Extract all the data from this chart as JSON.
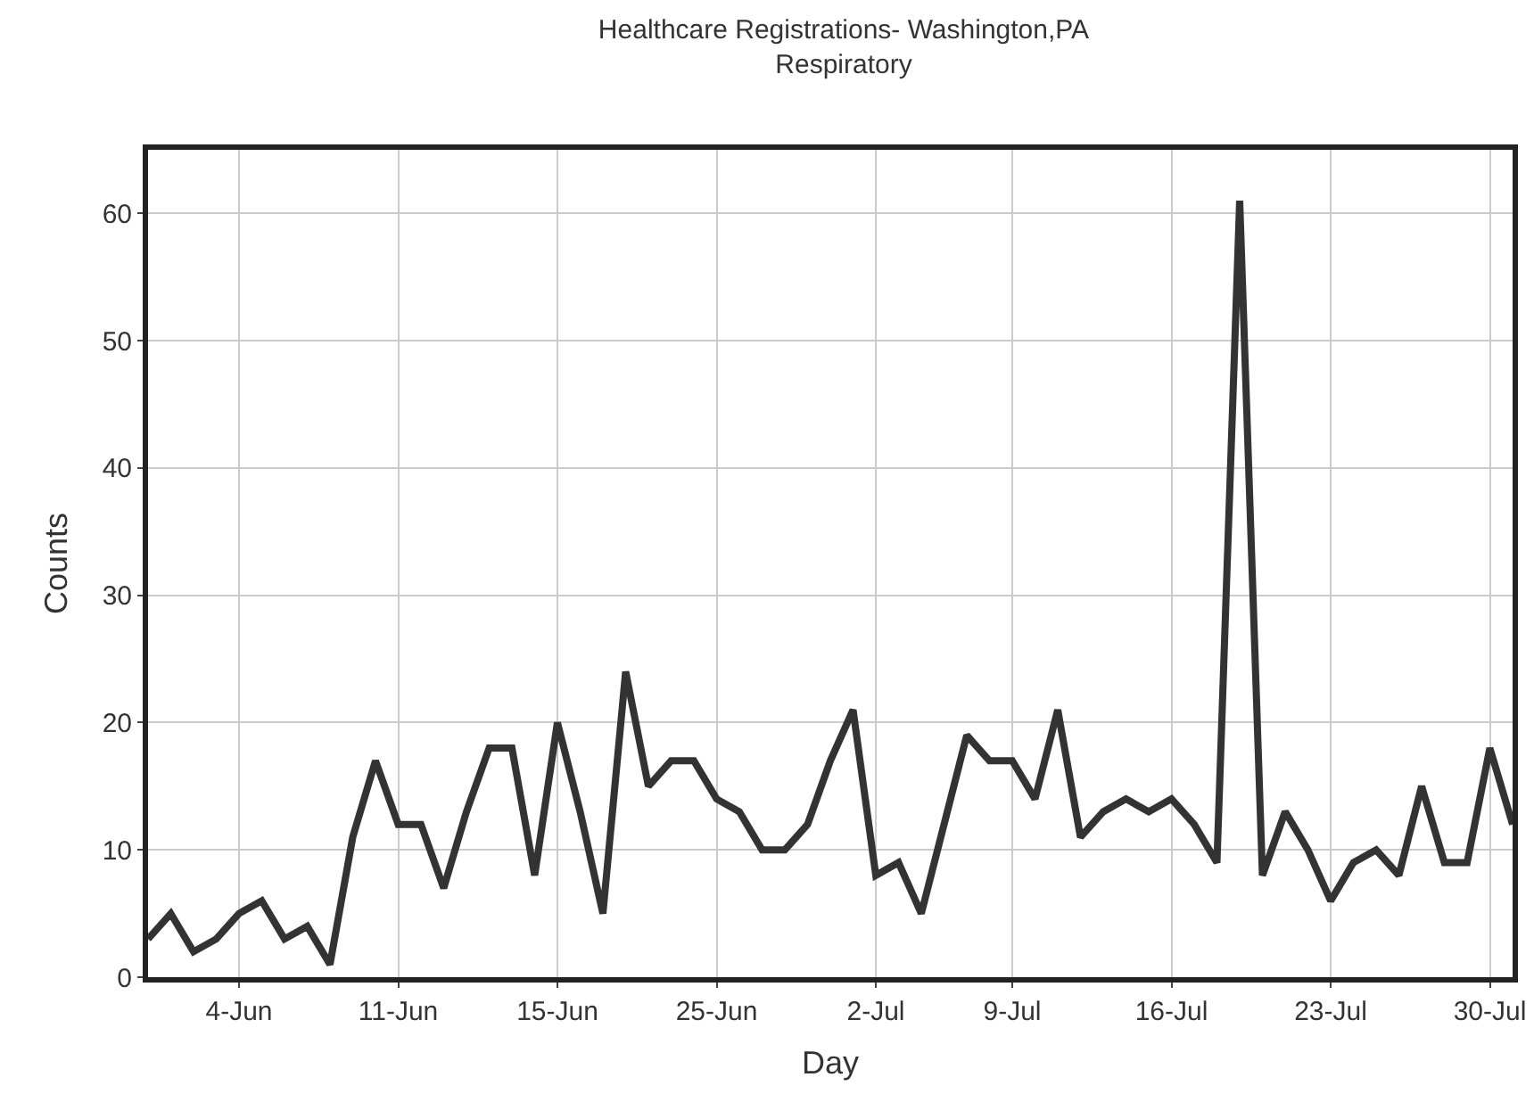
{
  "chart_data": {
    "type": "line",
    "title": "Healthcare Registrations- Washington,PA",
    "subtitle": "Respiratory",
    "xlabel": "Day",
    "ylabel": "Counts",
    "categories": [
      null,
      null,
      null,
      null,
      "4-Jun",
      null,
      null,
      null,
      null,
      null,
      null,
      "11-Jun",
      null,
      null,
      null,
      null,
      null,
      null,
      "15-Jun",
      null,
      null,
      null,
      null,
      null,
      null,
      "25-Jun",
      null,
      null,
      null,
      null,
      null,
      null,
      "2-Jul",
      null,
      null,
      null,
      null,
      null,
      "9-Jul",
      null,
      null,
      null,
      null,
      null,
      null,
      "16-Jul",
      null,
      null,
      null,
      null,
      null,
      null,
      "23-Jul",
      null,
      null,
      null,
      null,
      null,
      null,
      "30-Jul",
      null
    ],
    "series": [
      {
        "color": "#333333",
        "values": [
          3,
          5,
          2,
          3,
          5,
          6,
          3,
          4,
          1,
          11,
          17,
          12,
          12,
          7,
          13,
          18,
          18,
          8,
          20,
          13,
          5,
          24,
          15,
          17,
          17,
          14,
          13,
          10,
          10,
          12,
          17,
          21,
          8,
          9,
          5,
          12,
          19,
          17,
          17,
          14,
          21,
          11,
          13,
          14,
          13,
          14,
          12,
          9,
          61,
          8,
          13,
          10,
          6,
          9,
          10,
          8,
          15,
          9,
          9,
          18,
          12
        ]
      }
    ],
    "ylim": [
      0,
      65
    ],
    "yticks": [
      0,
      10,
      20,
      30,
      40,
      50,
      60
    ],
    "grid": true,
    "legend": false,
    "marker": "none",
    "line_style": "solid"
  }
}
